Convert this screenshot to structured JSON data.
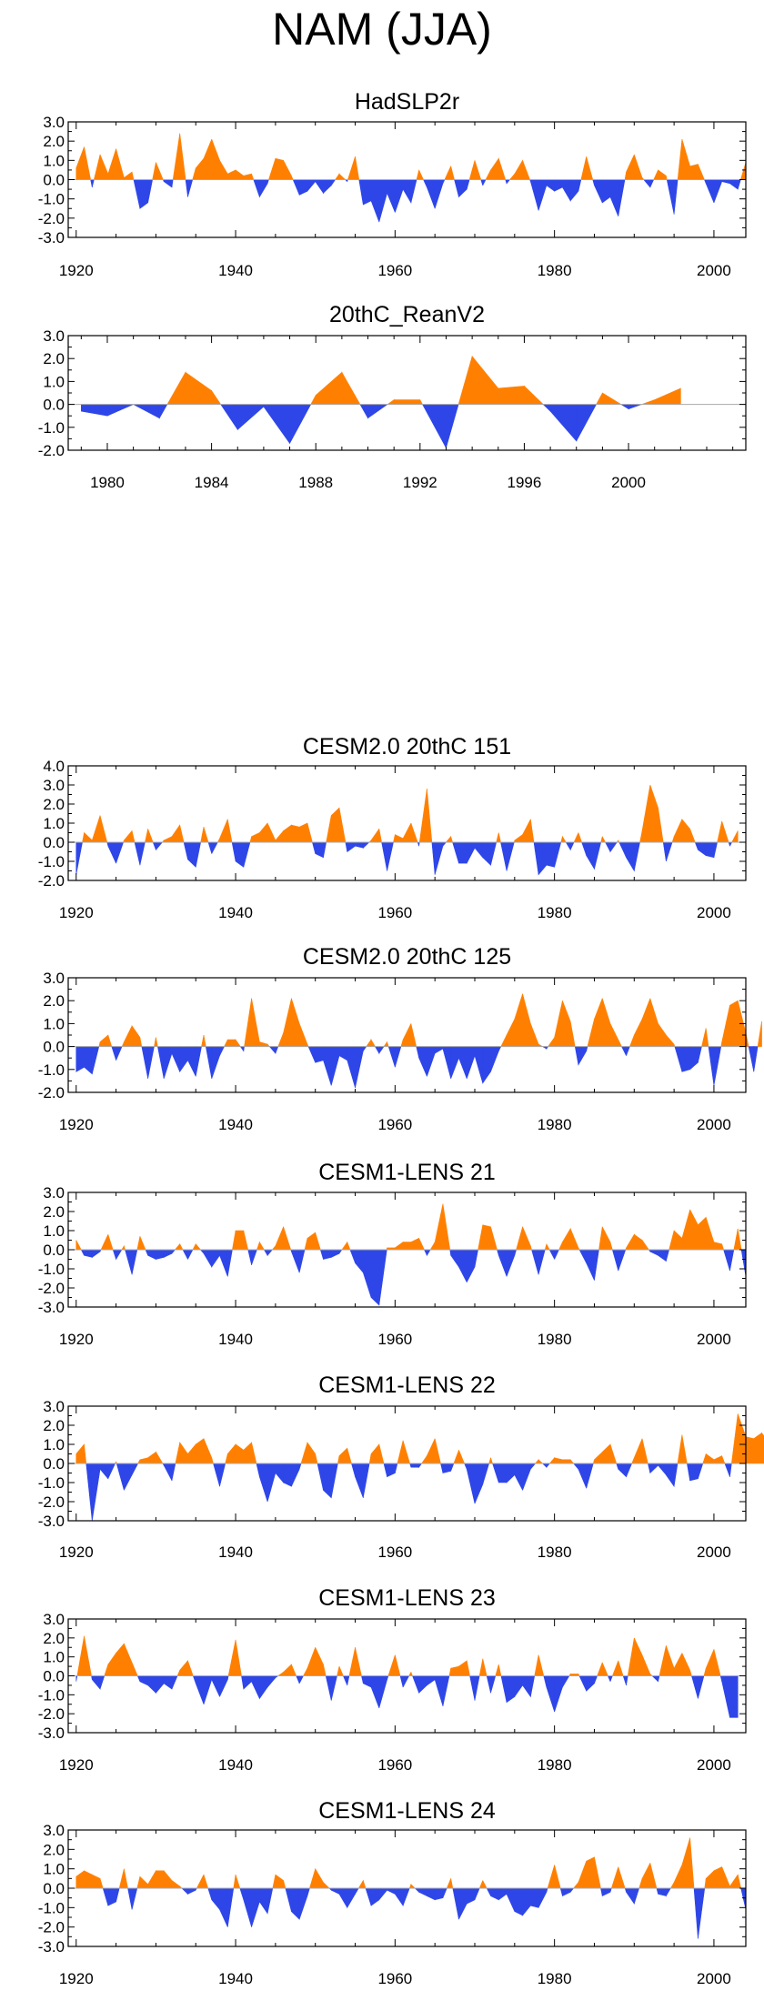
{
  "title": "NAM (JJA)",
  "colors": {
    "positive": "#ff8000",
    "negative": "#2e46e8",
    "axis": "#000000",
    "zero_line": "#aaaaaa"
  },
  "chart_data": [
    {
      "type": "area",
      "title": "HadSLP2r",
      "xlim": [
        1919,
        2004
      ],
      "ylim": [
        -3,
        3
      ],
      "yticks": [
        3,
        2,
        1,
        0,
        -1,
        -2,
        -3
      ],
      "ytick_labels": [
        "3.0",
        "2.0",
        "1.0",
        "0.0",
        "-1.0",
        "-2.0",
        "-3.0"
      ],
      "xticks": [
        1920,
        1940,
        1960,
        1980,
        2000
      ],
      "xtick_labels": [
        "1920",
        "1940",
        "1960",
        "1980",
        "2000"
      ],
      "x_start": 1920,
      "values": [
        0.6,
        1.7,
        -0.4,
        1.3,
        0.3,
        1.6,
        0.1,
        0.4,
        -1.5,
        -1.2,
        0.9,
        -0.1,
        -0.4,
        2.4,
        -0.9,
        0.6,
        1.1,
        2.1,
        1.0,
        0.3,
        0.5,
        0.2,
        0.3,
        -0.9,
        -0.2,
        1.1,
        1.0,
        0.2,
        -0.8,
        -0.6,
        -0.1,
        -0.7,
        -0.3,
        0.3,
        -0.1,
        1.2,
        -1.3,
        -1.1,
        -2.2,
        -0.7,
        -1.7,
        -0.5,
        -1.2,
        0.5,
        -0.4,
        -1.5,
        -0.2,
        0.7,
        -0.9,
        -0.5,
        1.0,
        -0.3,
        0.5,
        1.1,
        -0.2,
        0.3,
        1.0,
        -0.1,
        -1.6,
        -0.3,
        -0.6,
        -0.4,
        -1.1,
        -0.6,
        1.2,
        -0.3,
        -1.2,
        -0.9,
        -1.9,
        0.4,
        1.3,
        0.1,
        -0.4,
        0.5,
        0.2,
        -1.8,
        2.1,
        0.7,
        0.8,
        -0.2,
        -1.2,
        -0.1,
        -0.2,
        -0.5,
        0.9
      ]
    },
    {
      "type": "area",
      "title": "20thC_ReanV2",
      "xlim": [
        1978.5,
        2004.5
      ],
      "ylim": [
        -2,
        3
      ],
      "yticks": [
        3,
        2,
        1,
        0,
        -1,
        -2
      ],
      "ytick_labels": [
        "3.0",
        "2.0",
        "1.0",
        "0.0",
        "-1.0",
        "-2.0"
      ],
      "xticks": [
        1980,
        1984,
        1988,
        1992,
        1996,
        2000
      ],
      "xtick_labels": [
        "1980",
        "1984",
        "1988",
        "1992",
        "1996",
        "2000"
      ],
      "x_start": 1979,
      "values": [
        -0.3,
        -0.5,
        0.0,
        -0.6,
        1.4,
        0.6,
        -1.1,
        -0.1,
        -1.7,
        0.4,
        1.4,
        -0.6,
        0.2,
        0.2,
        -1.9,
        2.1,
        0.7,
        0.8,
        -0.3,
        -1.6,
        0.5,
        -0.2,
        0.2,
        0.7
      ]
    },
    {
      "type": "area",
      "title": "CESM2.0 20thC 151",
      "xlim": [
        1919,
        2004
      ],
      "ylim": [
        -2,
        4
      ],
      "yticks": [
        4,
        3,
        2,
        1,
        0,
        -1,
        -2
      ],
      "ytick_labels": [
        "4.0",
        "3.0",
        "2.0",
        "1.0",
        "0.0",
        "-1.0",
        "-2.0"
      ],
      "xticks": [
        1920,
        1940,
        1960,
        1980,
        2000
      ],
      "xtick_labels": [
        "1920",
        "1940",
        "1960",
        "1980",
        "2000"
      ],
      "x_start": 1920,
      "values": [
        -1.7,
        0.5,
        0.1,
        1.4,
        -0.2,
        -1.1,
        0.1,
        0.6,
        -1.2,
        0.7,
        -0.4,
        0.1,
        0.3,
        0.9,
        -0.9,
        -1.3,
        0.8,
        -0.6,
        0.2,
        1.2,
        -1.0,
        -1.3,
        0.3,
        0.5,
        1.0,
        0.1,
        0.6,
        0.9,
        0.8,
        1.0,
        -0.6,
        -0.8,
        1.4,
        1.8,
        -0.5,
        -0.2,
        -0.3,
        0.1,
        0.7,
        -1.5,
        0.4,
        0.2,
        1.0,
        -0.2,
        2.8,
        -1.7,
        -0.2,
        0.3,
        -1.1,
        -1.1,
        -0.3,
        -0.8,
        -1.2,
        0.5,
        -1.5,
        0.1,
        0.4,
        1.2,
        -1.7,
        -1.2,
        -1.3,
        0.3,
        -0.4,
        0.5,
        -0.7,
        -1.4,
        0.3,
        -0.5,
        0.1,
        -0.8,
        -1.5,
        0.6,
        3.0,
        1.8,
        -1.0,
        0.3,
        1.2,
        0.7,
        -0.4,
        -0.7,
        -0.8,
        1.1,
        -0.2,
        0.6
      ]
    },
    {
      "type": "area",
      "title": "CESM2.0 20thC 125",
      "xlim": [
        1919,
        2004
      ],
      "ylim": [
        -2,
        3
      ],
      "yticks": [
        3,
        2,
        1,
        0,
        -1,
        -2
      ],
      "ytick_labels": [
        "3.0",
        "2.0",
        "1.0",
        "0.0",
        "-1.0",
        "-2.0"
      ],
      "xticks": [
        1920,
        1940,
        1960,
        1980,
        2000
      ],
      "xtick_labels": [
        "1920",
        "1940",
        "1960",
        "1980",
        "2000"
      ],
      "x_start": 1920,
      "values": [
        -1.1,
        -0.9,
        -1.2,
        0.2,
        0.5,
        -0.6,
        0.2,
        0.9,
        0.4,
        -1.4,
        0.4,
        -1.4,
        -0.3,
        -1.1,
        -0.6,
        -1.3,
        0.5,
        -1.4,
        -0.4,
        0.3,
        0.3,
        -0.2,
        2.1,
        0.2,
        0.1,
        -0.3,
        0.6,
        2.1,
        1.0,
        0.1,
        -0.7,
        -0.6,
        -1.7,
        -0.4,
        -0.6,
        -1.8,
        -0.2,
        0.3,
        -0.3,
        0.2,
        -0.9,
        0.3,
        1.0,
        -0.5,
        -1.3,
        -0.3,
        -0.1,
        -1.4,
        -0.5,
        -1.4,
        -0.4,
        -1.6,
        -1.1,
        -0.2,
        0.5,
        1.2,
        2.3,
        1.0,
        0.1,
        -0.1,
        0.4,
        2.0,
        1.1,
        -0.8,
        -0.2,
        1.2,
        2.1,
        1.0,
        0.3,
        -0.4,
        0.5,
        1.2,
        2.1,
        1.0,
        0.5,
        0.1,
        -1.1,
        -1.0,
        -0.7,
        0.8,
        -1.7,
        0.2,
        1.8,
        2.0,
        0.6,
        -1.1,
        1.1
      ]
    },
    {
      "type": "area",
      "title": "CESM1-LENS 21",
      "xlim": [
        1919,
        2004
      ],
      "ylim": [
        -3,
        3
      ],
      "yticks": [
        3,
        2,
        1,
        0,
        -1,
        -2,
        -3
      ],
      "ytick_labels": [
        "3.0",
        "2.0",
        "1.0",
        "0.0",
        "-1.0",
        "-2.0",
        "-3.0"
      ],
      "xticks": [
        1920,
        1940,
        1960,
        1980,
        2000
      ],
      "xtick_labels": [
        "1920",
        "1940",
        "1960",
        "1980",
        "2000"
      ],
      "x_start": 1920,
      "values": [
        0.5,
        -0.3,
        -0.4,
        -0.1,
        0.8,
        -0.5,
        0.2,
        -1.3,
        0.7,
        -0.3,
        -0.5,
        -0.4,
        -0.2,
        0.3,
        -0.5,
        0.3,
        -0.2,
        -0.9,
        -0.3,
        -1.4,
        1.0,
        1.0,
        -0.8,
        0.4,
        -0.3,
        0.2,
        1.2,
        -0.1,
        -1.2,
        0.6,
        0.9,
        -0.5,
        -0.4,
        -0.2,
        0.4,
        -0.7,
        -1.2,
        -2.5,
        -2.9,
        0.1,
        0.1,
        0.4,
        0.4,
        0.6,
        -0.3,
        0.4,
        2.4,
        -0.3,
        -0.9,
        -1.7,
        -0.9,
        1.3,
        1.2,
        -0.3,
        -1.4,
        -0.3,
        1.2,
        0.2,
        -1.3,
        0.3,
        -0.5,
        0.4,
        1.1,
        0.1,
        -0.7,
        -1.6,
        1.2,
        0.4,
        -1.1,
        0.1,
        0.8,
        0.5,
        -0.1,
        -0.3,
        -0.6,
        1.0,
        0.6,
        2.1,
        1.3,
        1.7,
        0.4,
        0.3,
        -1.1,
        1.1,
        -1.4
      ]
    },
    {
      "type": "area",
      "title": "CESM1-LENS 22",
      "xlim": [
        1919,
        2004
      ],
      "ylim": [
        -3,
        3
      ],
      "yticks": [
        3,
        2,
        1,
        0,
        -1,
        -2,
        -3
      ],
      "ytick_labels": [
        "3.0",
        "2.0",
        "1.0",
        "0.0",
        "-1.0",
        "-2.0",
        "-3.0"
      ],
      "xticks": [
        1920,
        1940,
        1960,
        1980,
        2000
      ],
      "xtick_labels": [
        "1920",
        "1940",
        "1960",
        "1980",
        "2000"
      ],
      "x_start": 1920,
      "values": [
        0.5,
        1.0,
        -3.0,
        -0.3,
        -0.8,
        0.1,
        -1.4,
        -0.6,
        0.2,
        0.3,
        0.6,
        -0.1,
        -0.9,
        1.1,
        0.5,
        1.0,
        1.3,
        0.3,
        -1.2,
        0.5,
        1.0,
        0.7,
        1.1,
        -0.7,
        -2.0,
        -0.5,
        -1.0,
        -1.2,
        -0.3,
        1.1,
        0.5,
        -1.4,
        -1.8,
        0.4,
        0.8,
        -0.7,
        -1.8,
        0.5,
        1.0,
        -0.7,
        -0.5,
        1.2,
        -0.2,
        -0.2,
        0.4,
        1.3,
        -0.5,
        -0.4,
        0.7,
        -0.3,
        -2.1,
        -1.1,
        0.3,
        -1.0,
        -1.0,
        -0.6,
        -1.4,
        -0.3,
        0.2,
        -0.2,
        0.3,
        0.2,
        0.2,
        -0.3,
        -1.3,
        0.2,
        0.6,
        1.0,
        -0.3,
        -0.7,
        0.3,
        1.3,
        -0.5,
        -0.1,
        -0.6,
        -1.2,
        1.5,
        -0.9,
        -0.8,
        0.5,
        0.2,
        0.4,
        -0.7,
        2.6,
        1.4,
        1.3,
        1.6,
        1.0
      ]
    },
    {
      "type": "area",
      "title": "CESM1-LENS 23",
      "xlim": [
        1919,
        2004
      ],
      "ylim": [
        -3,
        3
      ],
      "yticks": [
        3,
        2,
        1,
        0,
        -1,
        -2,
        -3
      ],
      "ytick_labels": [
        "3.0",
        "2.0",
        "1.0",
        "0.0",
        "-1.0",
        "-2.0",
        "-3.0"
      ],
      "xticks": [
        1920,
        1940,
        1960,
        1980,
        2000
      ],
      "xtick_labels": [
        "1920",
        "1940",
        "1960",
        "1980",
        "2000"
      ],
      "x_start": 1920,
      "values": [
        -0.3,
        2.1,
        -0.2,
        -0.7,
        0.6,
        1.2,
        1.7,
        0.7,
        -0.3,
        -0.5,
        -0.9,
        -0.4,
        -0.7,
        0.3,
        0.8,
        -0.4,
        -1.5,
        -0.2,
        -1.1,
        -0.2,
        1.9,
        -0.7,
        -0.3,
        -1.2,
        -0.6,
        -0.1,
        0.2,
        0.6,
        -0.4,
        0.4,
        1.5,
        0.6,
        -1.3,
        0.5,
        -0.5,
        1.5,
        -0.4,
        -0.6,
        -1.7,
        -0.2,
        1.1,
        -0.6,
        0.2,
        -0.9,
        -0.5,
        -0.2,
        -1.6,
        0.4,
        0.5,
        0.8,
        -1.3,
        0.9,
        -0.9,
        0.6,
        -1.4,
        -1.1,
        -0.5,
        -1.1,
        1.1,
        -0.6,
        -1.9,
        -0.6,
        0.1,
        0.1,
        -0.8,
        -0.4,
        0.7,
        -0.3,
        0.8,
        -0.5,
        2.0,
        1.1,
        0.1,
        -0.3,
        1.6,
        0.4,
        1.2,
        0.3,
        -1.2,
        0.4,
        1.4,
        -0.3,
        -2.2,
        -2.2
      ]
    },
    {
      "type": "area",
      "title": "CESM1-LENS 24",
      "xlim": [
        1919,
        2004
      ],
      "ylim": [
        -3,
        3
      ],
      "yticks": [
        3,
        2,
        1,
        0,
        -1,
        -2,
        -3
      ],
      "ytick_labels": [
        "3.0",
        "2.0",
        "1.0",
        "0.0",
        "-1.0",
        "-2.0",
        "-3.0"
      ],
      "xticks": [
        1920,
        1940,
        1960,
        1980,
        2000
      ],
      "xtick_labels": [
        "1920",
        "1940",
        "1960",
        "1980",
        "2000"
      ],
      "x_start": 1920,
      "values": [
        0.6,
        0.9,
        0.7,
        0.5,
        -0.9,
        -0.7,
        1.0,
        -1.1,
        0.6,
        0.2,
        0.9,
        0.9,
        0.4,
        0.1,
        -0.3,
        -0.1,
        0.7,
        -0.6,
        -1.1,
        -2.0,
        0.7,
        -0.6,
        -2.0,
        -0.7,
        -1.3,
        0.7,
        0.4,
        -1.2,
        -1.6,
        -0.4,
        1.0,
        0.3,
        -0.1,
        -0.3,
        -1.0,
        -0.3,
        0.4,
        -0.9,
        -0.6,
        -0.1,
        -0.3,
        -0.9,
        0.2,
        -0.2,
        -0.4,
        -0.6,
        -0.5,
        0.5,
        -1.6,
        -0.8,
        -0.6,
        0.4,
        -0.4,
        -0.6,
        -0.3,
        -1.2,
        -1.4,
        -0.9,
        -1.0,
        -0.2,
        1.2,
        -0.4,
        -0.2,
        0.3,
        1.4,
        1.6,
        -0.4,
        -0.2,
        1.1,
        -0.2,
        -0.8,
        0.5,
        1.3,
        -0.3,
        -0.4,
        0.3,
        1.2,
        2.6,
        -2.6,
        0.5,
        0.9,
        1.1,
        0.1,
        0.7,
        -1.1
      ]
    }
  ]
}
